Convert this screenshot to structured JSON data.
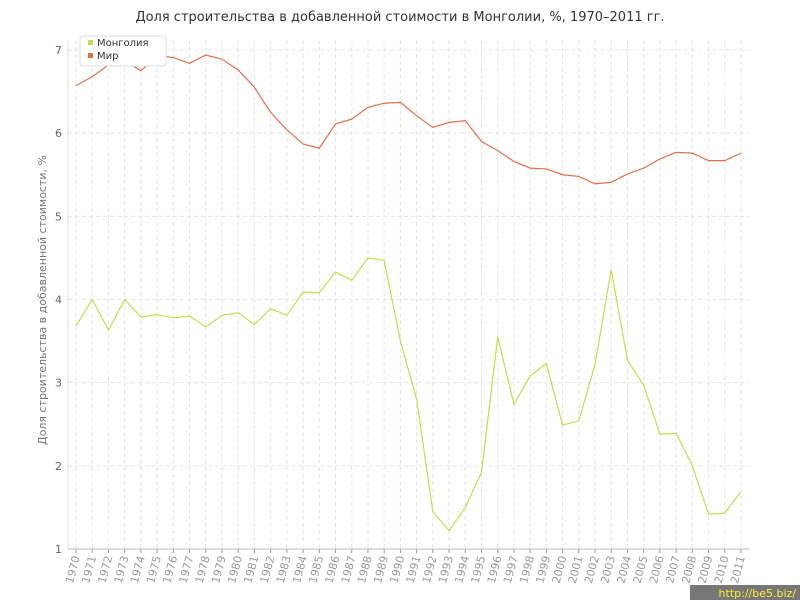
{
  "chart_data": {
    "type": "line",
    "title": "Доля строительства в добавленной стоимости в Монголии, %, 1970–2011 гг.",
    "y_label": "Доля строительства в добавленной стоимости, %",
    "x": [
      1970,
      1971,
      1972,
      1973,
      1974,
      1975,
      1976,
      1977,
      1978,
      1979,
      1980,
      1981,
      1982,
      1983,
      1984,
      1985,
      1986,
      1987,
      1988,
      1989,
      1990,
      1991,
      1992,
      1993,
      1994,
      1995,
      1996,
      1997,
      1998,
      1999,
      2000,
      2001,
      2002,
      2003,
      2004,
      2005,
      2006,
      2007,
      2008,
      2009,
      2010,
      2011
    ],
    "series": [
      {
        "name": "Монголия",
        "color": "#c5dc4f",
        "values": [
          3.68,
          4.0,
          3.63,
          4.0,
          3.79,
          3.82,
          3.78,
          3.8,
          3.67,
          3.81,
          3.84,
          3.7,
          3.89,
          3.81,
          4.09,
          4.08,
          4.33,
          4.23,
          4.5,
          4.47,
          3.5,
          2.8,
          1.45,
          1.22,
          1.5,
          1.92,
          3.55,
          2.74,
          3.08,
          3.23,
          2.49,
          2.54,
          3.22,
          4.36,
          3.27,
          2.97,
          2.38,
          2.39,
          2.0,
          1.42,
          1.43,
          1.69
        ]
      },
      {
        "name": "Мир",
        "color": "#e0704a",
        "values": [
          6.57,
          6.68,
          6.82,
          6.87,
          6.75,
          6.93,
          6.91,
          6.84,
          6.94,
          6.89,
          6.76,
          6.55,
          6.25,
          6.04,
          5.87,
          5.82,
          6.11,
          6.17,
          6.31,
          6.36,
          6.37,
          6.21,
          6.07,
          6.13,
          6.15,
          5.9,
          5.79,
          5.66,
          5.58,
          5.57,
          5.5,
          5.48,
          5.39,
          5.41,
          5.51,
          5.58,
          5.69,
          5.77,
          5.76,
          5.67,
          5.67,
          5.76
        ]
      }
    ],
    "xlim": [
      1970,
      2011
    ],
    "xticks": [
      1970,
      1971,
      1972,
      1973,
      1974,
      1975,
      1976,
      1977,
      1978,
      1979,
      1980,
      1981,
      1982,
      1983,
      1984,
      1985,
      1986,
      1987,
      1988,
      1989,
      1990,
      1991,
      1992,
      1993,
      1994,
      1995,
      1996,
      1997,
      1998,
      1999,
      2000,
      2001,
      2002,
      2003,
      2004,
      2005,
      2006,
      2007,
      2008,
      2009,
      2010,
      2011
    ],
    "ylim": [
      1,
      7
    ],
    "yticks": [
      1,
      2,
      3,
      4,
      5,
      6,
      7
    ],
    "grid": true,
    "legend": "top-left",
    "watermark": "http://be5.biz/"
  }
}
